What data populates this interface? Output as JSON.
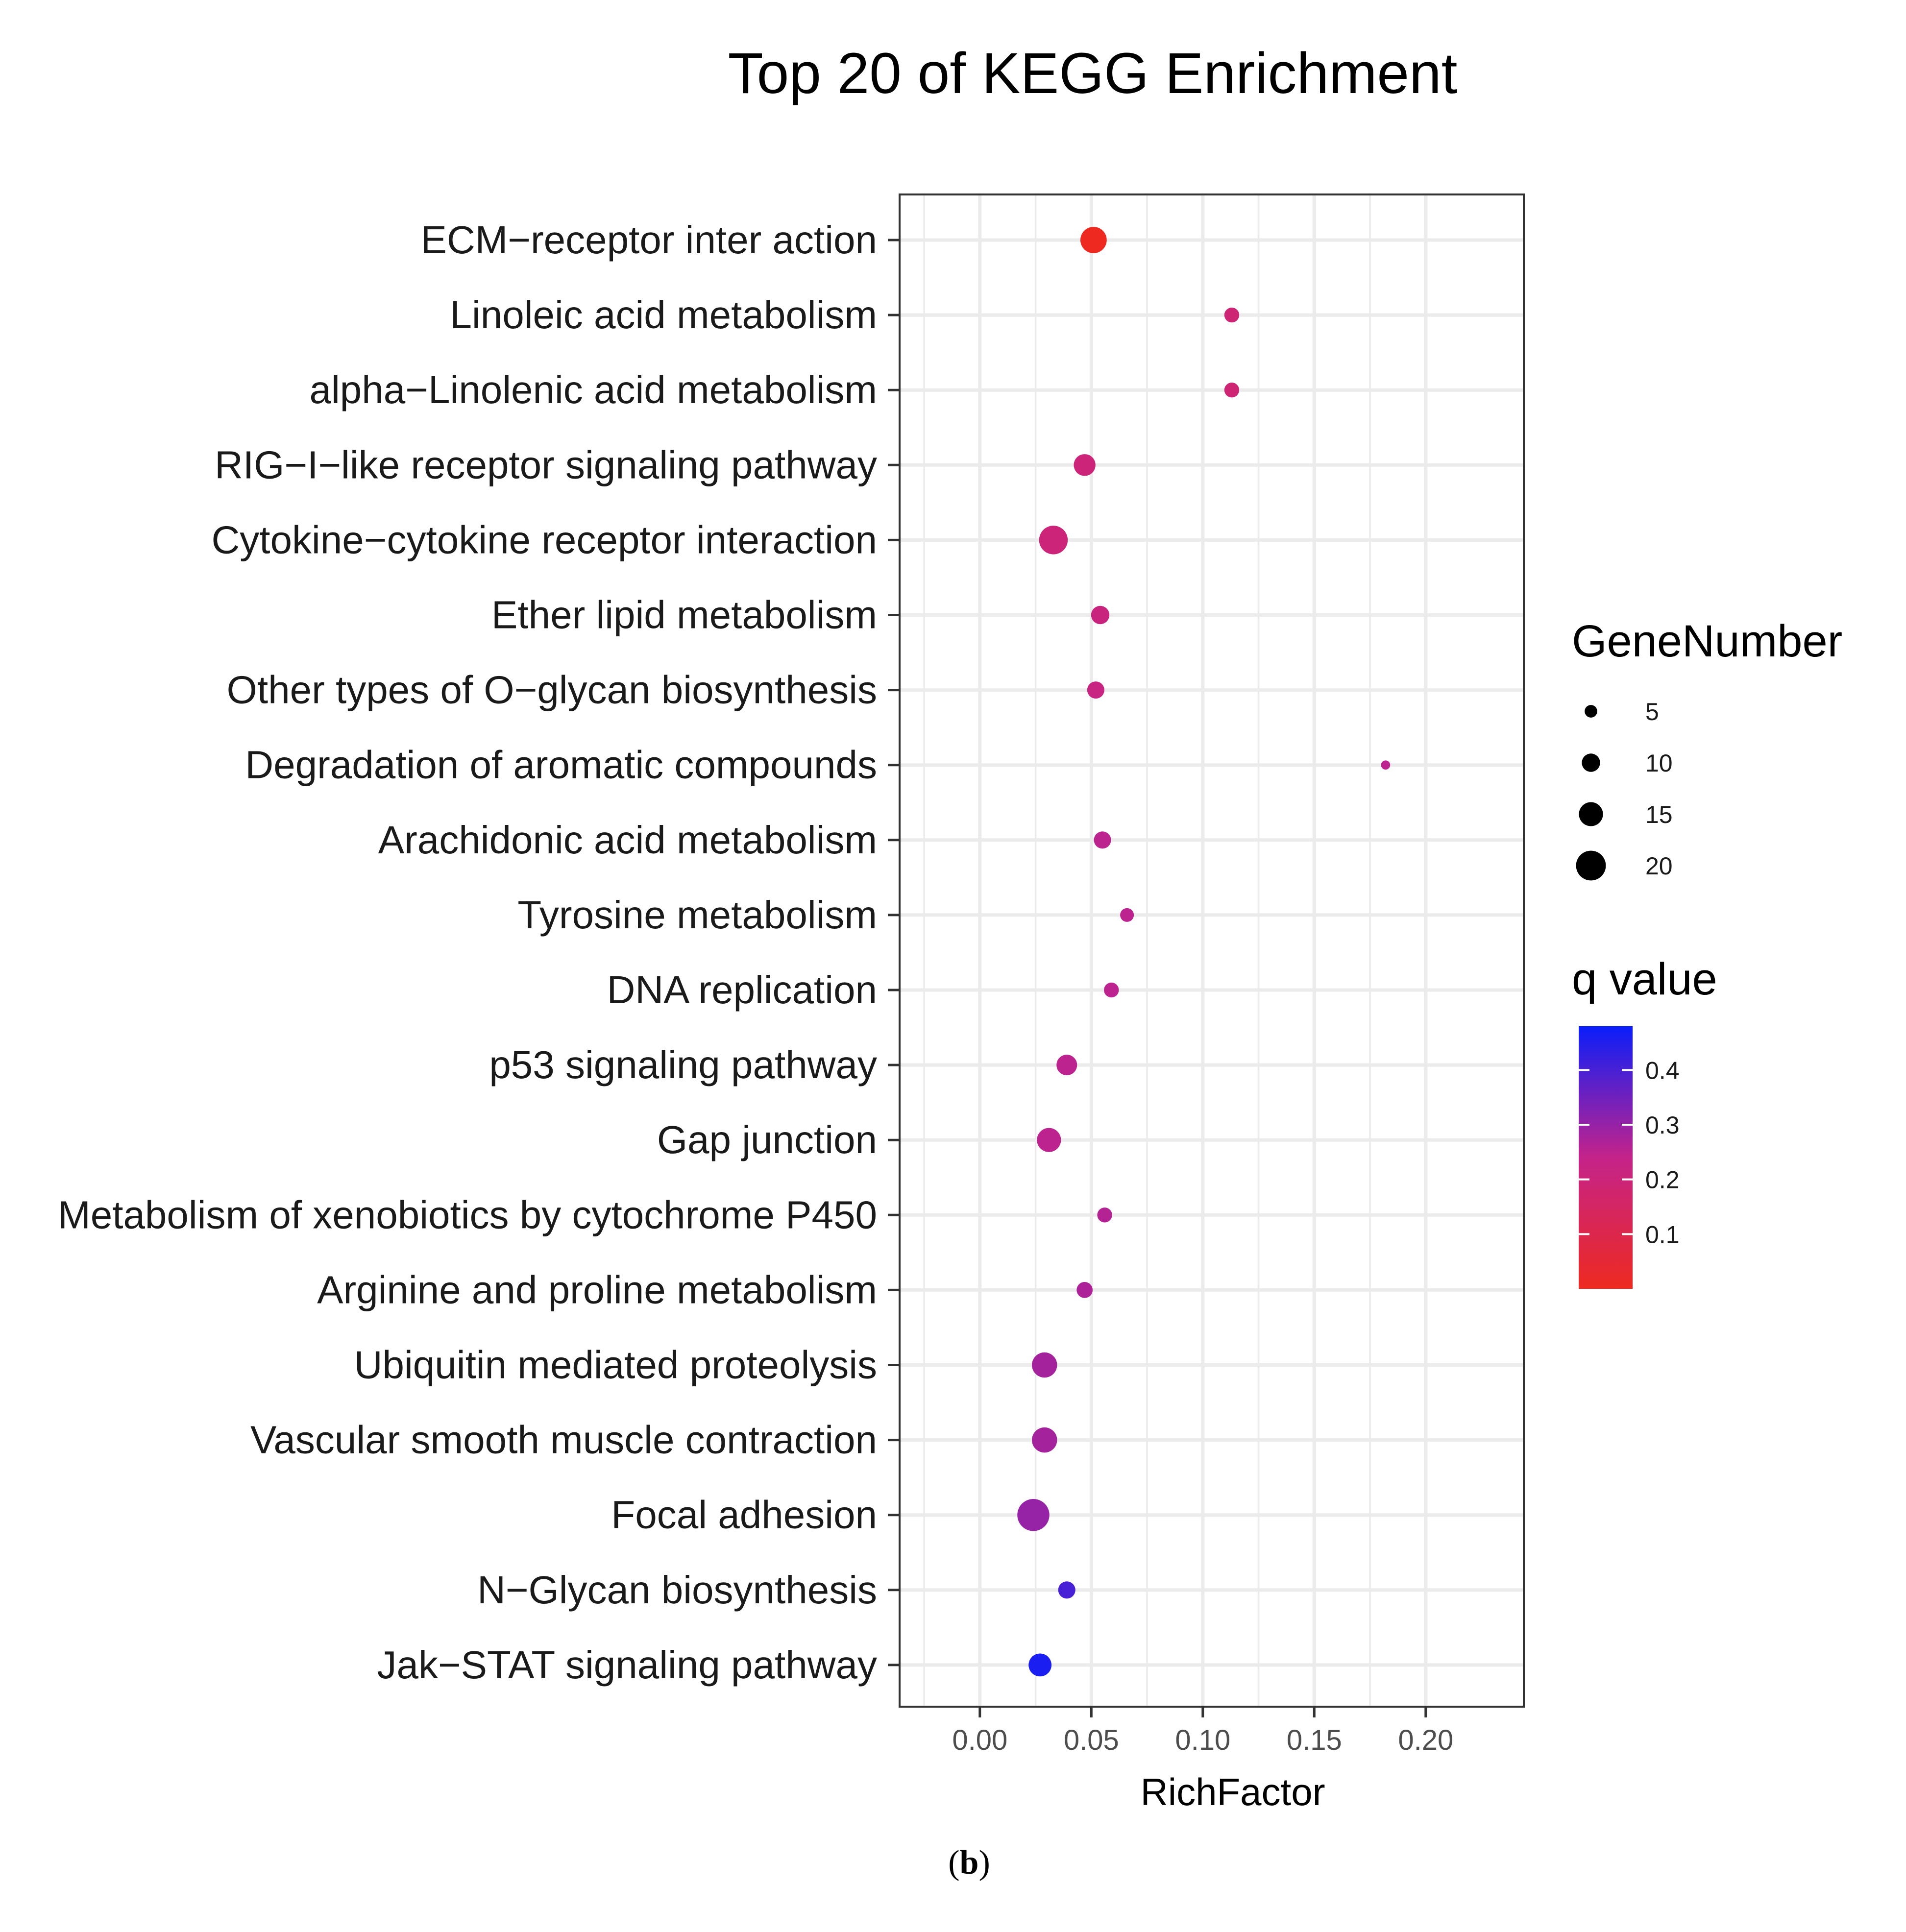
{
  "chart_data": {
    "type": "scatter",
    "title": "Top 20 of KEGG Enrichment",
    "xlabel": "RichFactor",
    "ylabel": "",
    "xlim": [
      -0.036,
      0.244
    ],
    "x_ticks": [
      "0.00",
      "0.05",
      "0.10",
      "0.15",
      "0.20"
    ],
    "x_tick_values": [
      0,
      0.05,
      0.1,
      0.15,
      0.2
    ],
    "categories": [
      "ECM−receptor inter action",
      "Linoleic acid metabolism",
      "alpha−Linolenic acid metabolism",
      "RIG−I−like receptor signaling pathway",
      "Cytokine−cytokine receptor interaction",
      "Ether lipid metabolism",
      "Other types of O−glycan biosynthesis",
      "Degradation of aromatic compounds",
      "Arachidonic acid metabolism",
      "Tyrosine metabolism",
      "DNA replication",
      "p53 signaling pathway",
      "Gap junction",
      "Metabolism of xenobiotics by cytochrome P450",
      "Arginine and proline metabolism",
      "Ubiquitin mediated proteolysis",
      "Vascular smooth muscle contraction",
      "Focal adhesion",
      "N−Glycan biosynthesis",
      "Jak−STAT signaling pathway"
    ],
    "points": [
      {
        "rich_factor": 0.051,
        "gene_number": 17,
        "q_value": 0.0
      },
      {
        "rich_factor": 0.113,
        "gene_number": 7,
        "q_value": 0.19
      },
      {
        "rich_factor": 0.113,
        "gene_number": 7,
        "q_value": 0.19
      },
      {
        "rich_factor": 0.047,
        "gene_number": 13,
        "q_value": 0.2
      },
      {
        "rich_factor": 0.033,
        "gene_number": 19,
        "q_value": 0.2
      },
      {
        "rich_factor": 0.054,
        "gene_number": 10,
        "q_value": 0.21
      },
      {
        "rich_factor": 0.052,
        "gene_number": 9,
        "q_value": 0.22
      },
      {
        "rich_factor": 0.182,
        "gene_number": 2,
        "q_value": 0.25
      },
      {
        "rich_factor": 0.055,
        "gene_number": 9,
        "q_value": 0.25
      },
      {
        "rich_factor": 0.066,
        "gene_number": 6,
        "q_value": 0.25
      },
      {
        "rich_factor": 0.059,
        "gene_number": 7,
        "q_value": 0.25
      },
      {
        "rich_factor": 0.039,
        "gene_number": 12,
        "q_value": 0.25
      },
      {
        "rich_factor": 0.031,
        "gene_number": 15,
        "q_value": 0.25
      },
      {
        "rich_factor": 0.056,
        "gene_number": 7,
        "q_value": 0.26
      },
      {
        "rich_factor": 0.047,
        "gene_number": 8,
        "q_value": 0.27
      },
      {
        "rich_factor": 0.029,
        "gene_number": 16,
        "q_value": 0.28
      },
      {
        "rich_factor": 0.029,
        "gene_number": 16,
        "q_value": 0.28
      },
      {
        "rich_factor": 0.024,
        "gene_number": 22,
        "q_value": 0.3
      },
      {
        "rich_factor": 0.039,
        "gene_number": 9,
        "q_value": 0.4
      },
      {
        "rich_factor": 0.027,
        "gene_number": 14,
        "q_value": 0.46
      }
    ],
    "size_legend": {
      "title": "GeneNumber",
      "values": [
        5,
        10,
        15,
        20
      ],
      "labels": [
        "5",
        "10",
        "15",
        "20"
      ]
    },
    "color_legend": {
      "title": "q value",
      "range": [
        0.0,
        0.48
      ],
      "tick_values": [
        0.4,
        0.3,
        0.2,
        0.1
      ],
      "tick_labels": [
        "0.4",
        "0.3",
        "0.2",
        "0.1"
      ],
      "low_color": "#EE2A20",
      "high_color": "#0A1EFA"
    },
    "grid": true,
    "legend_position": "right"
  },
  "caption": {
    "open": "(",
    "letter": "b",
    "close": ")"
  },
  "colors": {
    "grid": "#EBEBEB",
    "panel_border": "#333333",
    "text": "#1a1a1a",
    "tick": "#333333"
  }
}
